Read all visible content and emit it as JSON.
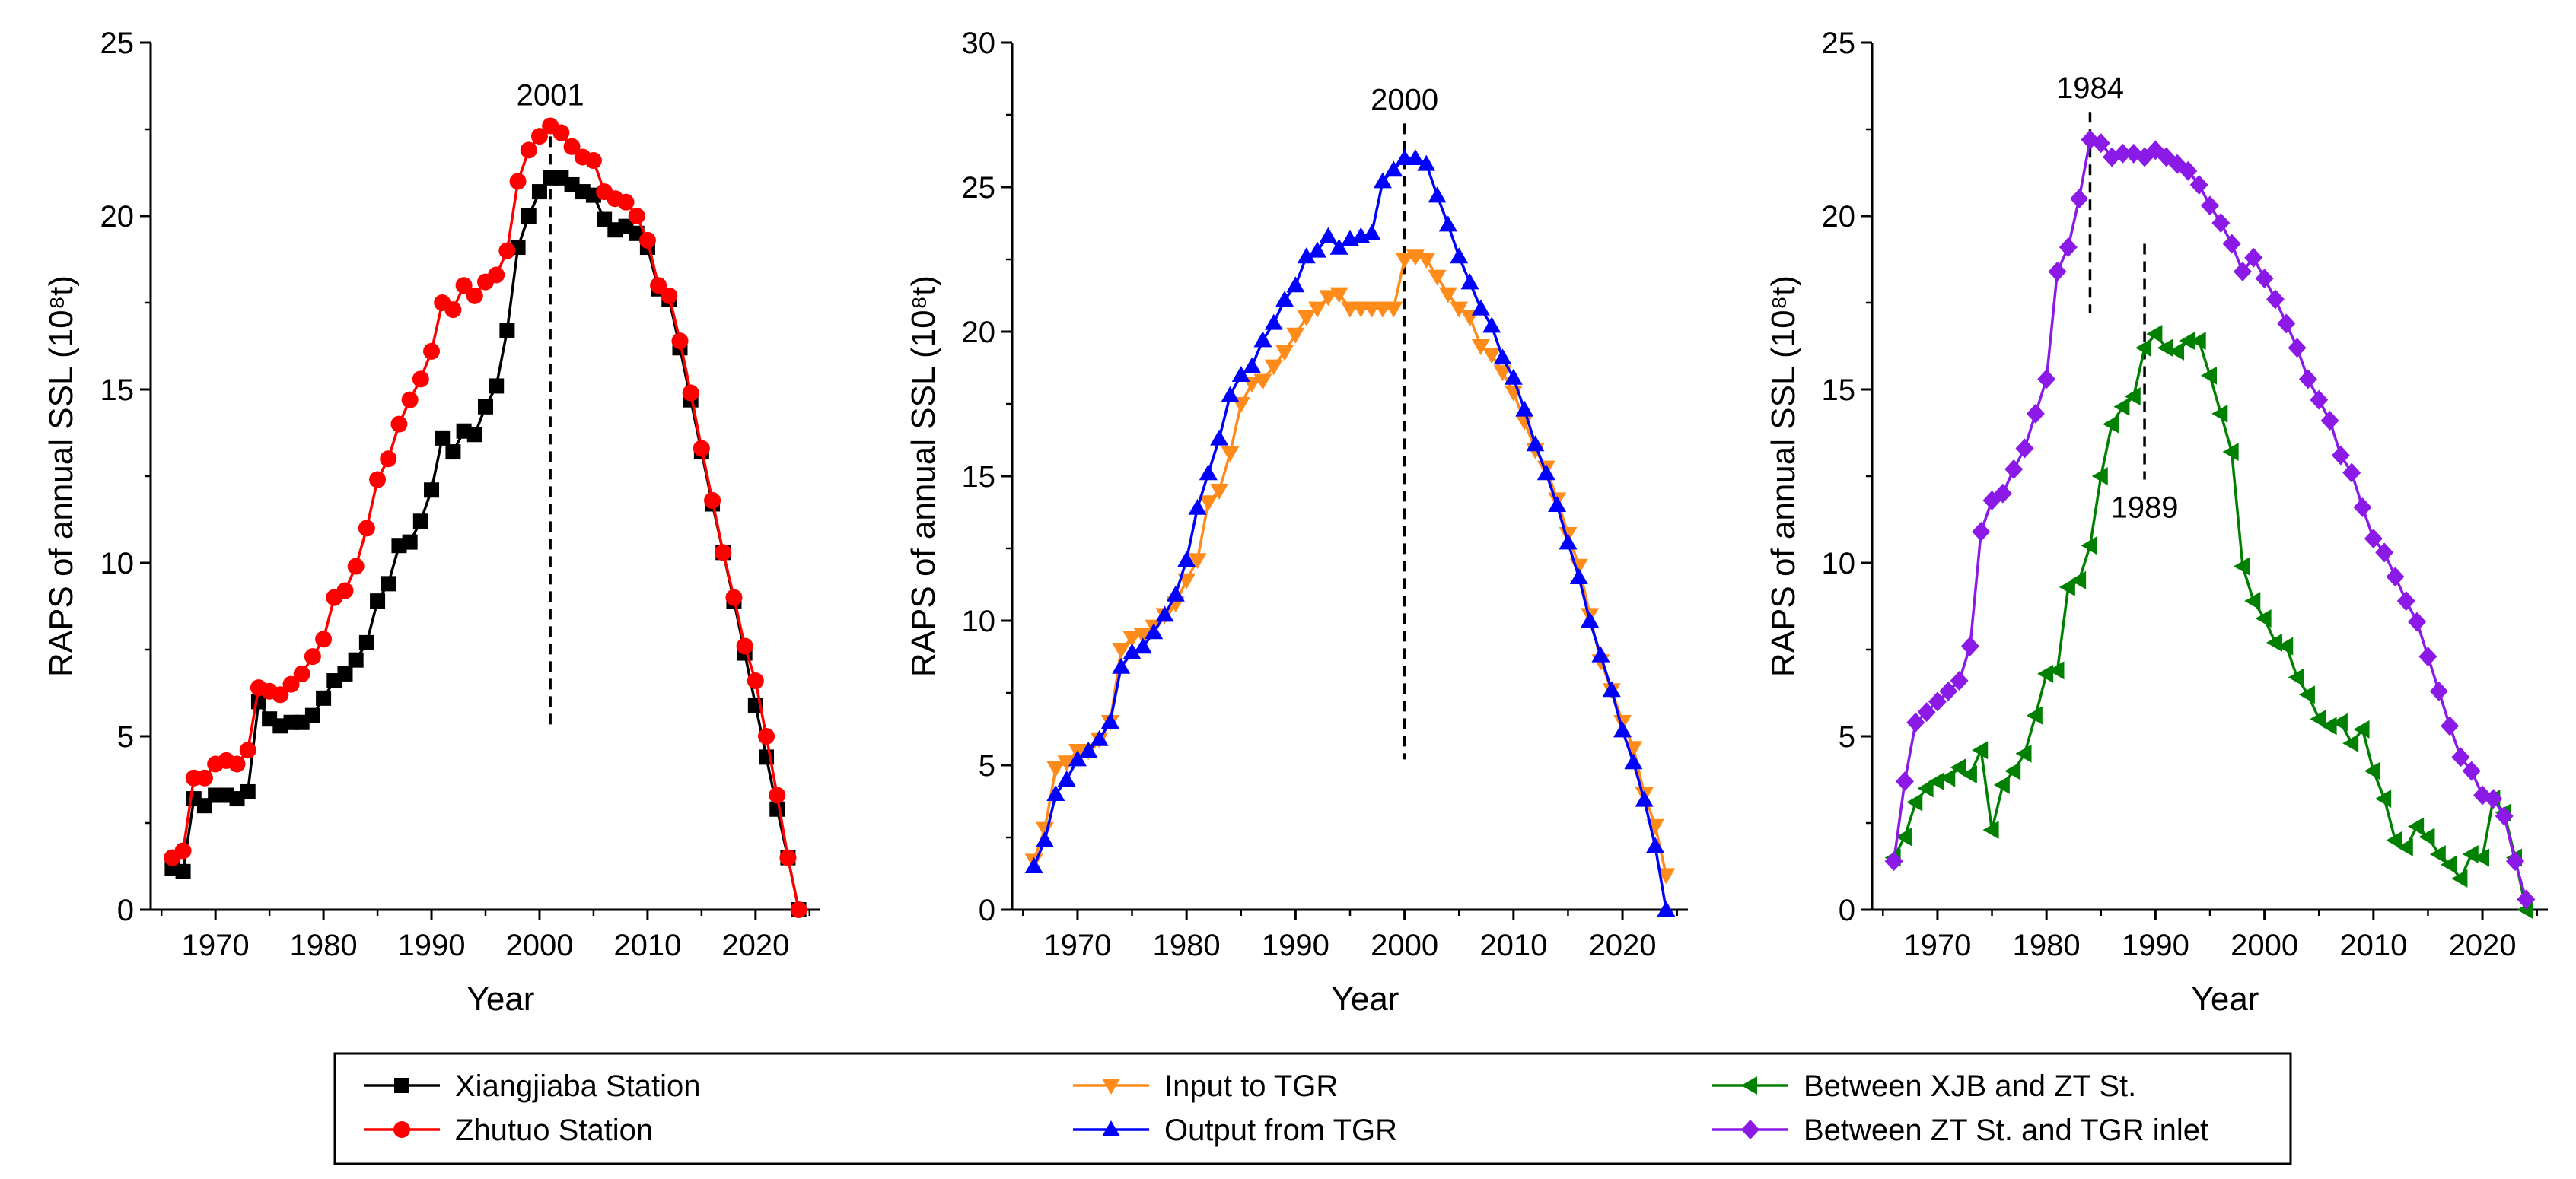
{
  "chart_data": [
    {
      "type": "line",
      "xlabel": "Year",
      "ylabel": "RAPS of annual SSL (10⁸t)",
      "xlim": [
        1964,
        2026
      ],
      "ylim": [
        0,
        25
      ],
      "xticks": [
        1970,
        1980,
        1990,
        2000,
        2010,
        2020
      ],
      "yticks": [
        0,
        5,
        10,
        15,
        20,
        25
      ],
      "annotations": [
        {
          "label": "2001",
          "x": 2001,
          "y_from": 5.2,
          "y_to": 22.8
        }
      ],
      "series": [
        {
          "name": "Xiangjiaba Station",
          "color": "#000000",
          "marker": "square",
          "x": [
            1966,
            1967,
            1968,
            1969,
            1970,
            1971,
            1972,
            1973,
            1974,
            1975,
            1976,
            1977,
            1978,
            1979,
            1980,
            1981,
            1982,
            1983,
            1984,
            1985,
            1986,
            1987,
            1988,
            1989,
            1990,
            1991,
            1992,
            1993,
            1994,
            1995,
            1996,
            1997,
            1998,
            1999,
            2000,
            2001,
            2002,
            2003,
            2004,
            2005,
            2006,
            2007,
            2008,
            2009,
            2010,
            2011,
            2012,
            2013,
            2014,
            2015,
            2016,
            2017,
            2018,
            2019,
            2020,
            2021,
            2022,
            2023,
            2024
          ],
          "y": [
            1.2,
            1.1,
            3.2,
            3.0,
            3.3,
            3.3,
            3.2,
            3.4,
            6.0,
            5.5,
            5.3,
            5.4,
            5.4,
            5.6,
            6.1,
            6.6,
            6.8,
            7.2,
            7.7,
            8.9,
            9.4,
            10.5,
            10.6,
            11.2,
            12.1,
            13.6,
            13.2,
            13.8,
            13.7,
            14.5,
            15.1,
            16.7,
            19.1,
            20.0,
            20.7,
            21.1,
            21.1,
            20.9,
            20.7,
            20.6,
            19.9,
            19.6,
            19.7,
            19.5,
            19.1,
            17.9,
            17.6,
            16.2,
            14.7,
            13.2,
            11.7,
            10.3,
            8.9,
            7.4,
            5.9,
            4.4,
            2.9,
            1.5,
            0.0
          ]
        },
        {
          "name": "Zhutuo Station",
          "color": "#ff0000",
          "marker": "circle",
          "x": [
            1966,
            1967,
            1968,
            1969,
            1970,
            1971,
            1972,
            1973,
            1974,
            1975,
            1976,
            1977,
            1978,
            1979,
            1980,
            1981,
            1982,
            1983,
            1984,
            1985,
            1986,
            1987,
            1988,
            1989,
            1990,
            1991,
            1992,
            1993,
            1994,
            1995,
            1996,
            1997,
            1998,
            1999,
            2000,
            2001,
            2002,
            2003,
            2004,
            2005,
            2006,
            2007,
            2008,
            2009,
            2010,
            2011,
            2012,
            2013,
            2014,
            2015,
            2016,
            2017,
            2018,
            2019,
            2020,
            2021,
            2022,
            2023,
            2024
          ],
          "y": [
            1.5,
            1.7,
            3.8,
            3.8,
            4.2,
            4.3,
            4.2,
            4.6,
            6.4,
            6.3,
            6.2,
            6.5,
            6.8,
            7.3,
            7.8,
            9.0,
            9.2,
            9.9,
            11.0,
            12.4,
            13.0,
            14.0,
            14.7,
            15.3,
            16.1,
            17.5,
            17.3,
            18.0,
            17.7,
            18.1,
            18.3,
            19.0,
            21.0,
            21.9,
            22.3,
            22.6,
            22.4,
            22.0,
            21.7,
            21.6,
            20.7,
            20.5,
            20.4,
            20.0,
            19.3,
            18.0,
            17.7,
            16.4,
            14.9,
            13.3,
            11.8,
            10.3,
            9.0,
            7.6,
            6.6,
            5.0,
            3.3,
            1.5,
            0.0
          ]
        }
      ]
    },
    {
      "type": "line",
      "xlabel": "Year",
      "ylabel": "RAPS of annual SSL (10⁸t)",
      "xlim": [
        1964,
        2026
      ],
      "ylim": [
        0,
        30
      ],
      "xticks": [
        1970,
        1980,
        1990,
        2000,
        2010,
        2020
      ],
      "yticks": [
        0,
        5,
        10,
        15,
        20,
        25,
        30
      ],
      "annotations": [
        {
          "label": "2000",
          "x": 2000,
          "y_from": 5.2,
          "y_to": 27.2
        }
      ],
      "series": [
        {
          "name": "Input to TGR",
          "color": "#ff8c1a",
          "marker": "triangle-down",
          "x": [
            1966,
            1967,
            1968,
            1969,
            1970,
            1971,
            1972,
            1973,
            1974,
            1975,
            1976,
            1977,
            1978,
            1979,
            1980,
            1981,
            1982,
            1983,
            1984,
            1985,
            1986,
            1987,
            1988,
            1989,
            1990,
            1991,
            1992,
            1993,
            1994,
            1995,
            1996,
            1997,
            1998,
            1999,
            2000,
            2001,
            2002,
            2003,
            2004,
            2005,
            2006,
            2007,
            2008,
            2009,
            2010,
            2011,
            2012,
            2013,
            2014,
            2015,
            2016,
            2017,
            2018,
            2019,
            2020,
            2021,
            2022,
            2023,
            2024
          ],
          "y": [
            1.7,
            2.8,
            4.9,
            5.1,
            5.5,
            5.5,
            5.9,
            6.5,
            9.0,
            9.4,
            9.5,
            9.8,
            10.2,
            10.6,
            11.4,
            12.1,
            14.1,
            14.5,
            15.8,
            17.5,
            18.2,
            18.3,
            18.8,
            19.3,
            19.9,
            20.5,
            20.8,
            21.2,
            21.3,
            20.8,
            20.8,
            20.8,
            20.8,
            20.8,
            22.5,
            22.6,
            22.5,
            21.9,
            21.3,
            20.8,
            20.5,
            19.5,
            19.2,
            18.6,
            17.9,
            16.9,
            15.9,
            15.3,
            14.2,
            13.0,
            11.9,
            10.2,
            8.6,
            7.6,
            6.5,
            5.6,
            4.0,
            2.9,
            1.2
          ]
        },
        {
          "name": "Output from TGR",
          "color": "#0000ff",
          "marker": "triangle-up",
          "x": [
            1966,
            1967,
            1968,
            1969,
            1970,
            1971,
            1972,
            1973,
            1974,
            1975,
            1976,
            1977,
            1978,
            1979,
            1980,
            1981,
            1982,
            1983,
            1984,
            1985,
            1986,
            1987,
            1988,
            1989,
            1990,
            1991,
            1992,
            1993,
            1994,
            1995,
            1996,
            1997,
            1998,
            1999,
            2000,
            2001,
            2002,
            2003,
            2004,
            2005,
            2006,
            2007,
            2008,
            2009,
            2010,
            2011,
            2012,
            2013,
            2014,
            2015,
            2016,
            2017,
            2018,
            2019,
            2020,
            2021,
            2022,
            2023,
            2024
          ],
          "y": [
            1.5,
            2.4,
            4.0,
            4.5,
            5.2,
            5.5,
            5.9,
            6.5,
            8.4,
            8.9,
            9.1,
            9.6,
            10.2,
            10.9,
            12.1,
            13.9,
            15.1,
            16.3,
            17.8,
            18.5,
            18.8,
            19.7,
            20.3,
            21.1,
            21.6,
            22.6,
            22.8,
            23.3,
            22.9,
            23.2,
            23.3,
            23.4,
            25.2,
            25.6,
            26.0,
            26.0,
            25.8,
            24.7,
            23.7,
            22.6,
            21.7,
            20.8,
            20.2,
            19.1,
            18.4,
            17.3,
            16.1,
            15.1,
            14.0,
            12.7,
            11.5,
            10.0,
            8.8,
            7.6,
            6.2,
            5.1,
            3.8,
            2.2,
            0.0
          ]
        }
      ]
    },
    {
      "type": "line",
      "xlabel": "Year",
      "ylabel": "RAPS of annual SSL (10⁸t)",
      "xlim": [
        1964,
        2026
      ],
      "ylim": [
        0,
        25
      ],
      "xticks": [
        1970,
        1980,
        1990,
        2000,
        2010,
        2020
      ],
      "yticks": [
        0,
        5,
        10,
        15,
        20,
        25
      ],
      "annotations": [
        {
          "label": "1984",
          "x": 1984,
          "y_from": 17.2,
          "y_to": 23.0,
          "label_pos": "above"
        },
        {
          "label": "1989",
          "x": 1989,
          "y_from": 12.4,
          "y_to": 19.2,
          "label_pos": "below"
        }
      ],
      "series": [
        {
          "name": "Between XJB and ZT St.",
          "color": "#008000",
          "marker": "triangle-left",
          "x": [
            1966,
            1967,
            1968,
            1969,
            1970,
            1971,
            1972,
            1973,
            1974,
            1975,
            1976,
            1977,
            1978,
            1979,
            1980,
            1981,
            1982,
            1983,
            1984,
            1985,
            1986,
            1987,
            1988,
            1989,
            1990,
            1991,
            1992,
            1993,
            1994,
            1995,
            1996,
            1997,
            1998,
            1999,
            2000,
            2001,
            2002,
            2003,
            2004,
            2005,
            2006,
            2007,
            2008,
            2009,
            2010,
            2011,
            2012,
            2013,
            2014,
            2015,
            2016,
            2017,
            2018,
            2019,
            2020,
            2021,
            2022,
            2023,
            2024
          ],
          "y": [
            1.5,
            2.1,
            3.1,
            3.5,
            3.7,
            3.8,
            4.1,
            3.9,
            4.6,
            2.3,
            3.6,
            4.0,
            4.5,
            5.6,
            6.8,
            6.9,
            9.3,
            9.5,
            10.5,
            12.5,
            14.0,
            14.5,
            14.8,
            16.2,
            16.6,
            16.2,
            16.1,
            16.4,
            16.4,
            15.4,
            14.3,
            13.2,
            9.9,
            8.9,
            8.4,
            7.7,
            7.6,
            6.7,
            6.2,
            5.5,
            5.3,
            5.4,
            4.8,
            5.2,
            4.0,
            3.2,
            2.0,
            1.8,
            2.4,
            2.1,
            1.6,
            1.3,
            0.9,
            1.6,
            1.5,
            3.2,
            2.8,
            1.5,
            0.0
          ]
        },
        {
          "name": "Between ZT St. and TGR inlet",
          "color": "#8b1ae6",
          "marker": "diamond",
          "x": [
            1966,
            1967,
            1968,
            1969,
            1970,
            1971,
            1972,
            1973,
            1974,
            1975,
            1976,
            1977,
            1978,
            1979,
            1980,
            1981,
            1982,
            1983,
            1984,
            1985,
            1986,
            1987,
            1988,
            1989,
            1990,
            1991,
            1992,
            1993,
            1994,
            1995,
            1996,
            1997,
            1998,
            1999,
            2000,
            2001,
            2002,
            2003,
            2004,
            2005,
            2006,
            2007,
            2008,
            2009,
            2010,
            2011,
            2012,
            2013,
            2014,
            2015,
            2016,
            2017,
            2018,
            2019,
            2020,
            2021,
            2022,
            2023,
            2024
          ],
          "y": [
            1.4,
            3.7,
            5.4,
            5.7,
            6.0,
            6.3,
            6.6,
            7.6,
            10.9,
            11.8,
            12.0,
            12.7,
            13.3,
            14.3,
            15.3,
            18.4,
            19.1,
            20.5,
            22.2,
            22.1,
            21.7,
            21.8,
            21.8,
            21.7,
            21.9,
            21.7,
            21.5,
            21.3,
            20.9,
            20.3,
            19.8,
            19.2,
            18.4,
            18.8,
            18.2,
            17.6,
            16.9,
            16.2,
            15.3,
            14.7,
            14.1,
            13.1,
            12.6,
            11.6,
            10.7,
            10.3,
            9.6,
            8.9,
            8.3,
            7.3,
            6.3,
            5.3,
            4.4,
            4.0,
            3.3,
            3.2,
            2.7,
            1.4,
            0.3
          ]
        }
      ]
    }
  ],
  "legend": {
    "col1": [
      "Xiangjiaba Station",
      "Zhutuo Station"
    ],
    "col2": [
      "Input to TGR",
      "Output from TGR"
    ],
    "col3": [
      "Between XJB and ZT St.",
      "Between ZT St. and TGR inlet"
    ]
  }
}
